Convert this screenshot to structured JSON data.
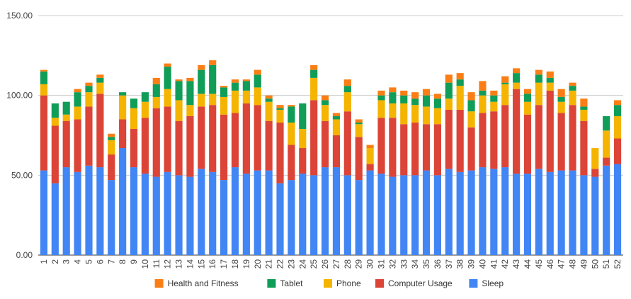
{
  "chart_data": {
    "type": "bar",
    "stacked": true,
    "categories": [
      "1",
      "2",
      "3",
      "4",
      "5",
      "6",
      "7",
      "8",
      "9",
      "10",
      "11",
      "12",
      "13",
      "14",
      "15",
      "16",
      "17",
      "18",
      "19",
      "20",
      "21",
      "22",
      "23",
      "24",
      "25",
      "26",
      "27",
      "28",
      "29",
      "30",
      "31",
      "32",
      "33",
      "34",
      "35",
      "36",
      "37",
      "38",
      "39",
      "40",
      "41",
      "42",
      "43",
      "44",
      "45",
      "46",
      "47",
      "48",
      "49",
      "50",
      "51",
      "52"
    ],
    "ylim": [
      0,
      150
    ],
    "yticks": [
      "0.00",
      "50.00",
      "100.00",
      "150.00"
    ],
    "ytick_values": [
      0,
      50,
      100,
      150
    ],
    "grid": true,
    "legend_position": "bottom",
    "series": [
      {
        "name": "Sleep",
        "color": "#4285F4",
        "values": [
          53,
          45,
          55,
          52,
          56,
          55,
          47,
          67,
          55,
          51,
          49,
          52,
          50,
          49,
          54,
          52,
          47,
          55,
          51,
          53,
          53,
          45,
          47,
          51,
          50,
          55,
          55,
          50,
          47,
          53,
          51,
          49,
          50,
          50,
          53,
          50,
          54,
          52,
          53,
          55,
          54,
          55,
          51,
          51,
          54,
          52,
          53,
          53,
          50,
          49,
          56,
          57
        ]
      },
      {
        "name": "Computer Usage",
        "color": "#DB4437",
        "values": [
          47,
          36,
          29,
          33,
          37,
          46,
          16,
          18,
          24,
          35,
          43,
          41,
          34,
          38,
          39,
          42,
          41,
          34,
          44,
          41,
          31,
          38,
          22,
          16,
          47,
          29,
          20,
          40,
          27,
          4,
          35,
          37,
          32,
          33,
          29,
          32,
          37,
          39,
          27,
          34,
          36,
          39,
          53,
          37,
          40,
          51,
          36,
          41,
          34,
          5,
          5,
          16
        ]
      },
      {
        "name": "Phone",
        "color": "#F4B400",
        "values": [
          7,
          5,
          4,
          8,
          9,
          7,
          9,
          15,
          13,
          10,
          7,
          11,
          13,
          7,
          8,
          7,
          11,
          14,
          8,
          11,
          12,
          8,
          14,
          12,
          14,
          10,
          10,
          12,
          8,
          10,
          11,
          9,
          13,
          11,
          11,
          10,
          7,
          15,
          10,
          11,
          6,
          13,
          4,
          8,
          14,
          5,
          7,
          9,
          7,
          13,
          17,
          14
        ]
      },
      {
        "name": "Tablet",
        "color": "#0F9D58",
        "values": [
          8,
          9,
          8,
          9,
          4,
          3,
          2,
          2,
          6,
          6,
          8,
          14,
          12,
          15,
          15,
          18,
          6,
          5,
          6,
          8,
          2,
          1,
          10,
          16,
          5,
          3,
          2,
          4,
          1,
          0,
          3,
          7,
          5,
          4,
          7,
          6,
          10,
          4,
          7,
          3,
          4,
          1,
          6,
          5,
          5,
          3,
          3,
          3,
          2,
          0,
          9,
          7
        ]
      },
      {
        "name": "Health and Fitness",
        "color": "#FA7E15",
        "values": [
          1,
          0,
          0,
          2,
          2,
          2,
          2,
          0,
          0,
          0,
          4,
          2,
          1,
          2,
          3,
          3,
          1,
          2,
          1,
          3,
          2,
          2,
          1,
          0,
          3,
          3,
          2,
          4,
          2,
          2,
          3,
          3,
          3,
          4,
          4,
          3,
          5,
          4,
          5,
          6,
          3,
          4,
          3,
          3,
          3,
          4,
          5,
          2,
          5,
          0,
          0,
          3
        ]
      }
    ]
  }
}
